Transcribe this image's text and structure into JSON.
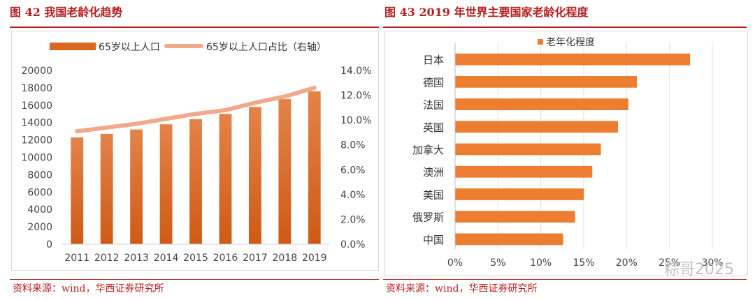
{
  "left": {
    "figure_title": "图 42  我国老龄化趋势",
    "source": "资料来源：wind，华西证券研究所",
    "legend_bar": "65岁以上人口",
    "legend_line": "65岁以上人口占比（右轴）",
    "colors": {
      "bar": "#d9671f",
      "line": "#f0a98a",
      "title": "#b51f1f"
    }
  },
  "right": {
    "figure_title": "图 43  2019 年世界主要国家老龄化程度",
    "source": "资料来源：wind，华西证券研究所",
    "legend": "老年化程度",
    "colors": {
      "bar": "#ed7d31"
    }
  },
  "watermark": "粽哥2025",
  "chart_data": [
    {
      "type": "bar",
      "categories": [
        "2011",
        "2012",
        "2013",
        "2014",
        "2015",
        "2016",
        "2017",
        "2018",
        "2019"
      ],
      "series": [
        {
          "name": "65岁以上人口",
          "type": "bar",
          "axis": "left",
          "values": [
            12300,
            12700,
            13200,
            13800,
            14400,
            15000,
            15800,
            16700,
            17600
          ]
        },
        {
          "name": "65岁以上人口占比（右轴）",
          "type": "line",
          "axis": "right",
          "values": [
            9.1,
            9.4,
            9.7,
            10.1,
            10.5,
            10.8,
            11.4,
            11.9,
            12.6
          ]
        }
      ],
      "ylim": [
        0,
        20000
      ],
      "yticks": [
        "0",
        "2000",
        "4000",
        "6000",
        "8000",
        "10000",
        "12000",
        "14000",
        "16000",
        "18000",
        "20000"
      ],
      "y2lim": [
        0,
        14
      ],
      "y2ticks": [
        "0.0%",
        "2.0%",
        "4.0%",
        "6.0%",
        "8.0%",
        "10.0%",
        "12.0%",
        "14.0%"
      ],
      "legend_position": "top"
    },
    {
      "type": "bar",
      "orientation": "horizontal",
      "categories": [
        "日本",
        "德国",
        "法国",
        "英国",
        "加拿大",
        "澳洲",
        "美国",
        "俄罗斯",
        "中国"
      ],
      "series": [
        {
          "name": "老年化程度",
          "values": [
            27.4,
            21.2,
            20.2,
            19.0,
            17.0,
            16.0,
            15.0,
            14.0,
            12.6
          ]
        }
      ],
      "xlim": [
        0,
        30
      ],
      "xticks": [
        "0%",
        "5%",
        "10%",
        "15%",
        "20%",
        "25%",
        "30%"
      ],
      "grid": true,
      "legend_position": "top"
    }
  ]
}
